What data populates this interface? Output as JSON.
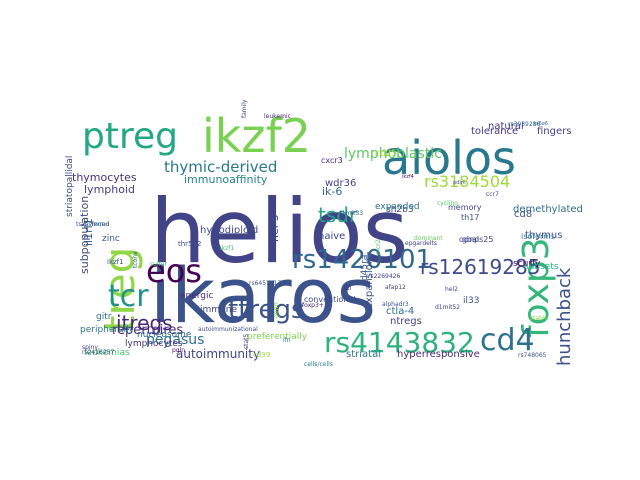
{
  "words": [
    {
      "text": "helios",
      "color": "#414487"
    },
    {
      "text": "ikaros",
      "color": "#3b528b"
    },
    {
      "text": "aiolos",
      "color": "#2a788e"
    },
    {
      "text": "ikzf2",
      "color": "#7ad151"
    },
    {
      "text": "ptreg",
      "color": "#22a884"
    },
    {
      "text": "treg",
      "color": "#8fd744"
    },
    {
      "text": "foxp3",
      "color": "#35b779"
    },
    {
      "text": "eos",
      "color": "#440154"
    },
    {
      "text": "rs1420101",
      "color": "#31688e"
    },
    {
      "text": "rs4143832",
      "color": "#2db27d"
    },
    {
      "text": "tcr",
      "color": "#21918c"
    },
    {
      "text": "cd4",
      "color": "#2c728e"
    },
    {
      "text": "ttregs",
      "color": "#3b528b"
    },
    {
      "text": "rs12619285",
      "color": "#3e4a89"
    },
    {
      "text": "tsdr",
      "color": "#20a386"
    },
    {
      "text": "hunchback",
      "color": "#3b528b"
    },
    {
      "text": "itregs",
      "color": "#482878"
    },
    {
      "text": "rs3184504",
      "color": "#a0da39"
    },
    {
      "text": "thymic-derived",
      "color": "#2a788e"
    },
    {
      "text": "lymphoblastic",
      "color": "#5ec962"
    },
    {
      "text": "pegasus",
      "color": "#2c728e"
    },
    {
      "text": "repertoires",
      "color": "#472d7b"
    },
    {
      "text": "autoimmunity",
      "color": "#414487"
    },
    {
      "text": "thymocytes",
      "color": "#46327e"
    },
    {
      "text": "lymphoid",
      "color": "#433e85"
    },
    {
      "text": "il1rl1",
      "color": "#355f8d"
    },
    {
      "text": "subpopulation",
      "color": "#3f4788"
    },
    {
      "text": "immunoaffinity",
      "color": "#25848e"
    },
    {
      "text": "hypodiploid",
      "color": "#3e4c8a"
    },
    {
      "text": "nucleosome",
      "color": "#2e6e8e"
    },
    {
      "text": "ik-6",
      "color": "#31688e"
    },
    {
      "text": "wdr36",
      "color": "#424186"
    },
    {
      "text": "hel-5",
      "color": "#3f4788"
    },
    {
      "text": "naive",
      "color": "#3e4989"
    },
    {
      "text": "demethylated",
      "color": "#2e6f8e"
    },
    {
      "text": "thymus",
      "color": "#3b528b"
    },
    {
      "text": "cd8",
      "color": "#39568c"
    },
    {
      "text": "fingers",
      "color": "#414487"
    },
    {
      "text": "natural",
      "color": "#453581"
    },
    {
      "text": "tolerance",
      "color": "#443b84"
    },
    {
      "text": "expansion",
      "color": "#3d4d8a"
    },
    {
      "text": "ctla-4",
      "color": "#2e6e8e"
    },
    {
      "text": "ntregs",
      "color": "#424086"
    },
    {
      "text": "hyperresponsive",
      "color": "#472c7a"
    },
    {
      "text": "striatal",
      "color": "#2a768e"
    },
    {
      "text": "scurfy",
      "color": "#460b5e"
    },
    {
      "text": "anergic",
      "color": "#472e7c"
    },
    {
      "text": "immune",
      "color": "#3f4889"
    },
    {
      "text": "preferentially",
      "color": "#7fd34e"
    },
    {
      "text": "zinc",
      "color": "#38588c"
    },
    {
      "text": "sh2b3",
      "color": "#3e4c8a"
    },
    {
      "text": "cd25",
      "color": "#addc30"
    },
    {
      "text": "expanded",
      "color": "#2c738e"
    },
    {
      "text": "striatopallidal",
      "color": "#3c4f8a"
    },
    {
      "text": "peripherally",
      "color": "#2a778e"
    },
    {
      "text": "lymphocytes",
      "color": "#46327e"
    },
    {
      "text": "leukemias",
      "color": "#46c06f"
    },
    {
      "text": "cd45ra",
      "color": "#37598c"
    },
    {
      "text": "il33",
      "color": "#3a548c"
    },
    {
      "text": "conventional",
      "color": "#3e4a89"
    },
    {
      "text": "subsets",
      "color": "#26ad81"
    },
    {
      "text": "cxcr3",
      "color": "#472c7a"
    },
    {
      "text": "th17",
      "color": "#3b528b"
    },
    {
      "text": "isoforms",
      "color": "#2a778e"
    },
    {
      "text": "memory",
      "color": "#404688"
    },
    {
      "text": "odnps25",
      "color": "#3f4788"
    },
    {
      "text": "goal",
      "color": "#404588"
    },
    {
      "text": "rs2269426",
      "color": "#433d84"
    },
    {
      "text": "rs6457617",
      "color": "#38588c"
    },
    {
      "text": "rs3939286",
      "color": "#31688e"
    },
    {
      "text": "leukemic",
      "color": "#482475"
    },
    {
      "text": "thr592",
      "color": "#3d4e8a"
    },
    {
      "text": "rs748065",
      "color": "#3b528b"
    },
    {
      "text": "stat5",
      "color": "#463480"
    },
    {
      "text": "foxp3+",
      "color": "#48186a"
    },
    {
      "text": "cd39",
      "color": "#9bd93c"
    },
    {
      "text": "pgln",
      "color": "#471365"
    },
    {
      "text": "ikzf1",
      "color": "#3a548c"
    },
    {
      "text": "rs2416257",
      "color": "#424086"
    },
    {
      "text": "spiny",
      "color": "#404588"
    },
    {
      "text": "gitr",
      "color": "#2d718e"
    },
    {
      "text": "tconv",
      "color": "#3d4d8a"
    },
    {
      "text": "ilti",
      "color": "#46337f"
    },
    {
      "text": "afap12",
      "color": "#433d84"
    },
    {
      "text": "hel2",
      "color": "#3a538b"
    },
    {
      "text": "alphadr3",
      "color": "#3b518b"
    },
    {
      "text": "d1mit52",
      "color": "#423f85"
    },
    {
      "text": "d1mit33",
      "color": "#3b528b"
    },
    {
      "text": "epgardelts",
      "color": "#404688"
    },
    {
      "text": "mono",
      "color": "#2f6c8e"
    },
    {
      "text": "ikzf1",
      "color": "#46c06f"
    },
    {
      "text": "mcr2",
      "color": "#50c46a"
    },
    {
      "text": "dominant",
      "color": "#65cb5e"
    },
    {
      "text": "cycling",
      "color": "#56c667"
    },
    {
      "text": "stable",
      "color": "#7ad151"
    },
    {
      "text": "sulfur",
      "color": "#38b977"
    },
    {
      "text": "germ",
      "color": "#92d741"
    },
    {
      "text": "ifn",
      "color": "#2c728e"
    },
    {
      "text": "ccr7",
      "color": "#3e4989"
    },
    {
      "text": "pdlm",
      "color": "#3d4d8a"
    },
    {
      "text": "ikzf4",
      "color": "#471164"
    },
    {
      "text": "family",
      "color": "#3c508b"
    },
    {
      "text": "rs6e6",
      "color": "#31688e"
    },
    {
      "text": "transferred",
      "color": "#38588c"
    },
    {
      "text": "autoimmunizational",
      "color": "#3a548c"
    },
    {
      "text": "cells/cells",
      "color": "#26828e"
    },
    {
      "text": "rs6857650",
      "color": "#424086"
    },
    {
      "text": "d1mit19",
      "color": "#34618d"
    }
  ]
}
